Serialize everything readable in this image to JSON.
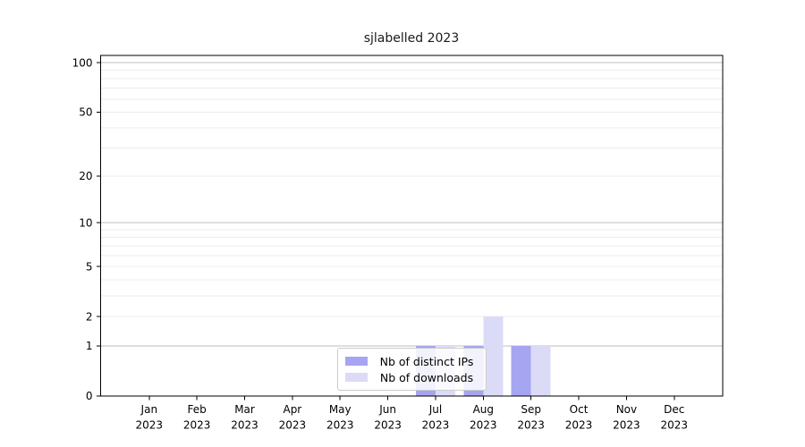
{
  "figure": {
    "background": "#ffffff",
    "axis_color": "#000000",
    "major_grid_color": "#bdbdbd",
    "minor_grid_color": "#ececec",
    "legend_border_color": "#cccccc"
  },
  "chart_data": {
    "type": "bar",
    "title": "sjlabelled 2023",
    "categories": [
      "Jan 2023",
      "Feb 2023",
      "Mar 2023",
      "Apr 2023",
      "May 2023",
      "Jun 2023",
      "Jul 2023",
      "Aug 2023",
      "Sep 2023",
      "Oct 2023",
      "Nov 2023",
      "Dec 2023"
    ],
    "series": [
      {
        "name": "Nb of distinct IPs",
        "color": "#a5a5f2",
        "values": [
          0,
          0,
          0,
          0,
          0,
          0,
          1,
          1,
          1,
          0,
          0,
          0
        ]
      },
      {
        "name": "Nb of downloads",
        "color": "#dbdbf8",
        "values": [
          0,
          0,
          0,
          0,
          0,
          0,
          1,
          2,
          1,
          0,
          0,
          0
        ]
      }
    ],
    "xlabel": "",
    "ylabel": "",
    "yscale": "log1p",
    "ylim": [
      0,
      110.6
    ],
    "yticks": [
      0,
      1,
      2,
      5,
      10,
      20,
      50,
      100
    ],
    "minor_gridlines": [
      2,
      3,
      4,
      5,
      6,
      7,
      8,
      9,
      20,
      30,
      40,
      50,
      60,
      70,
      80,
      90
    ],
    "major_gridlines": [
      1,
      10,
      100
    ],
    "grid": true,
    "legend_position": "lower-center-inside"
  }
}
